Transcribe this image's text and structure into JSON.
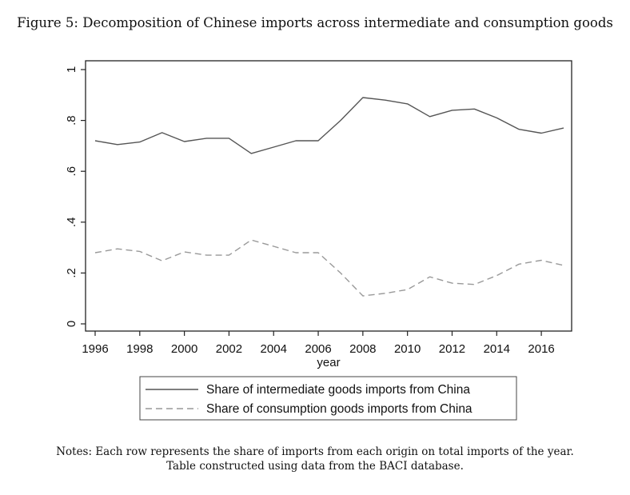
{
  "page_title": "Figure 5: Decomposition of Chinese imports across intermediate and consumption goods",
  "notes": {
    "line1": "Notes: Each row represents the share of imports from each origin on total imports of the year.",
    "line2": "Table constructed using data from the BACI database."
  },
  "chart_data": {
    "type": "line",
    "xlabel": "year",
    "ylabel": "",
    "xlim": [
      1996,
      2017
    ],
    "ylim": [
      0,
      1
    ],
    "x_ticks": [
      1996,
      1998,
      2000,
      2002,
      2004,
      2006,
      2008,
      2010,
      2012,
      2014,
      2016
    ],
    "x_tick_labels": [
      "1996",
      "1998",
      "2000",
      "2002",
      "2004",
      "2006",
      "2008",
      "2010",
      "2012",
      "2014",
      "2016"
    ],
    "y_ticks": [
      0,
      0.2,
      0.4,
      0.6,
      0.8,
      1
    ],
    "y_tick_labels": [
      "0",
      ".2",
      ".4",
      ".6",
      ".8",
      "1"
    ],
    "grid": false,
    "legend_position": "bottom",
    "x": [
      1996,
      1997,
      1998,
      1999,
      2000,
      2001,
      2002,
      2003,
      2004,
      2005,
      2006,
      2007,
      2008,
      2009,
      2010,
      2011,
      2012,
      2013,
      2014,
      2015,
      2016,
      2017
    ],
    "series": [
      {
        "name": "Share of intermediate goods imports from China",
        "style": "solid",
        "color": "#555555",
        "values": [
          0.72,
          0.705,
          0.715,
          0.752,
          0.717,
          0.73,
          0.73,
          0.67,
          0.695,
          0.72,
          0.72,
          0.8,
          0.89,
          0.88,
          0.865,
          0.815,
          0.84,
          0.845,
          0.81,
          0.765,
          0.75,
          0.77
        ]
      },
      {
        "name": "Share of consumption goods imports from China",
        "style": "dashed",
        "color": "#999999",
        "values": [
          0.28,
          0.295,
          0.285,
          0.248,
          0.283,
          0.27,
          0.27,
          0.33,
          0.305,
          0.28,
          0.28,
          0.2,
          0.11,
          0.12,
          0.135,
          0.185,
          0.16,
          0.155,
          0.19,
          0.235,
          0.25,
          0.23
        ]
      }
    ]
  }
}
